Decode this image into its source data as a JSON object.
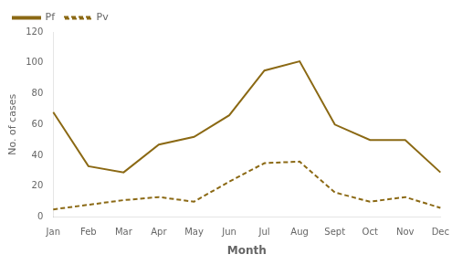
{
  "chart_data": {
    "type": "line",
    "categories": [
      "Jan",
      "Feb",
      "Mar",
      "Apr",
      "May",
      "Jun",
      "Jul",
      "Aug",
      "Sept",
      "Oct",
      "Nov",
      "Dec"
    ],
    "series": [
      {
        "name": "Pf",
        "color": "#8B6914",
        "line_style": "solid",
        "values": [
          68,
          33,
          29,
          47,
          52,
          66,
          95,
          101,
          60,
          50,
          50,
          29
        ]
      },
      {
        "name": "Pv",
        "color": "#8B6914",
        "line_style": "dashed",
        "values": [
          5,
          8,
          11,
          13,
          10,
          23,
          35,
          36,
          16,
          10,
          13,
          6
        ]
      }
    ],
    "xlabel": "Month",
    "ylabel": "No. of cases",
    "ylim": [
      0,
      120
    ],
    "yticks": [
      0,
      20,
      40,
      60,
      80,
      100,
      120
    ],
    "grid": false,
    "legend": "upper left"
  }
}
